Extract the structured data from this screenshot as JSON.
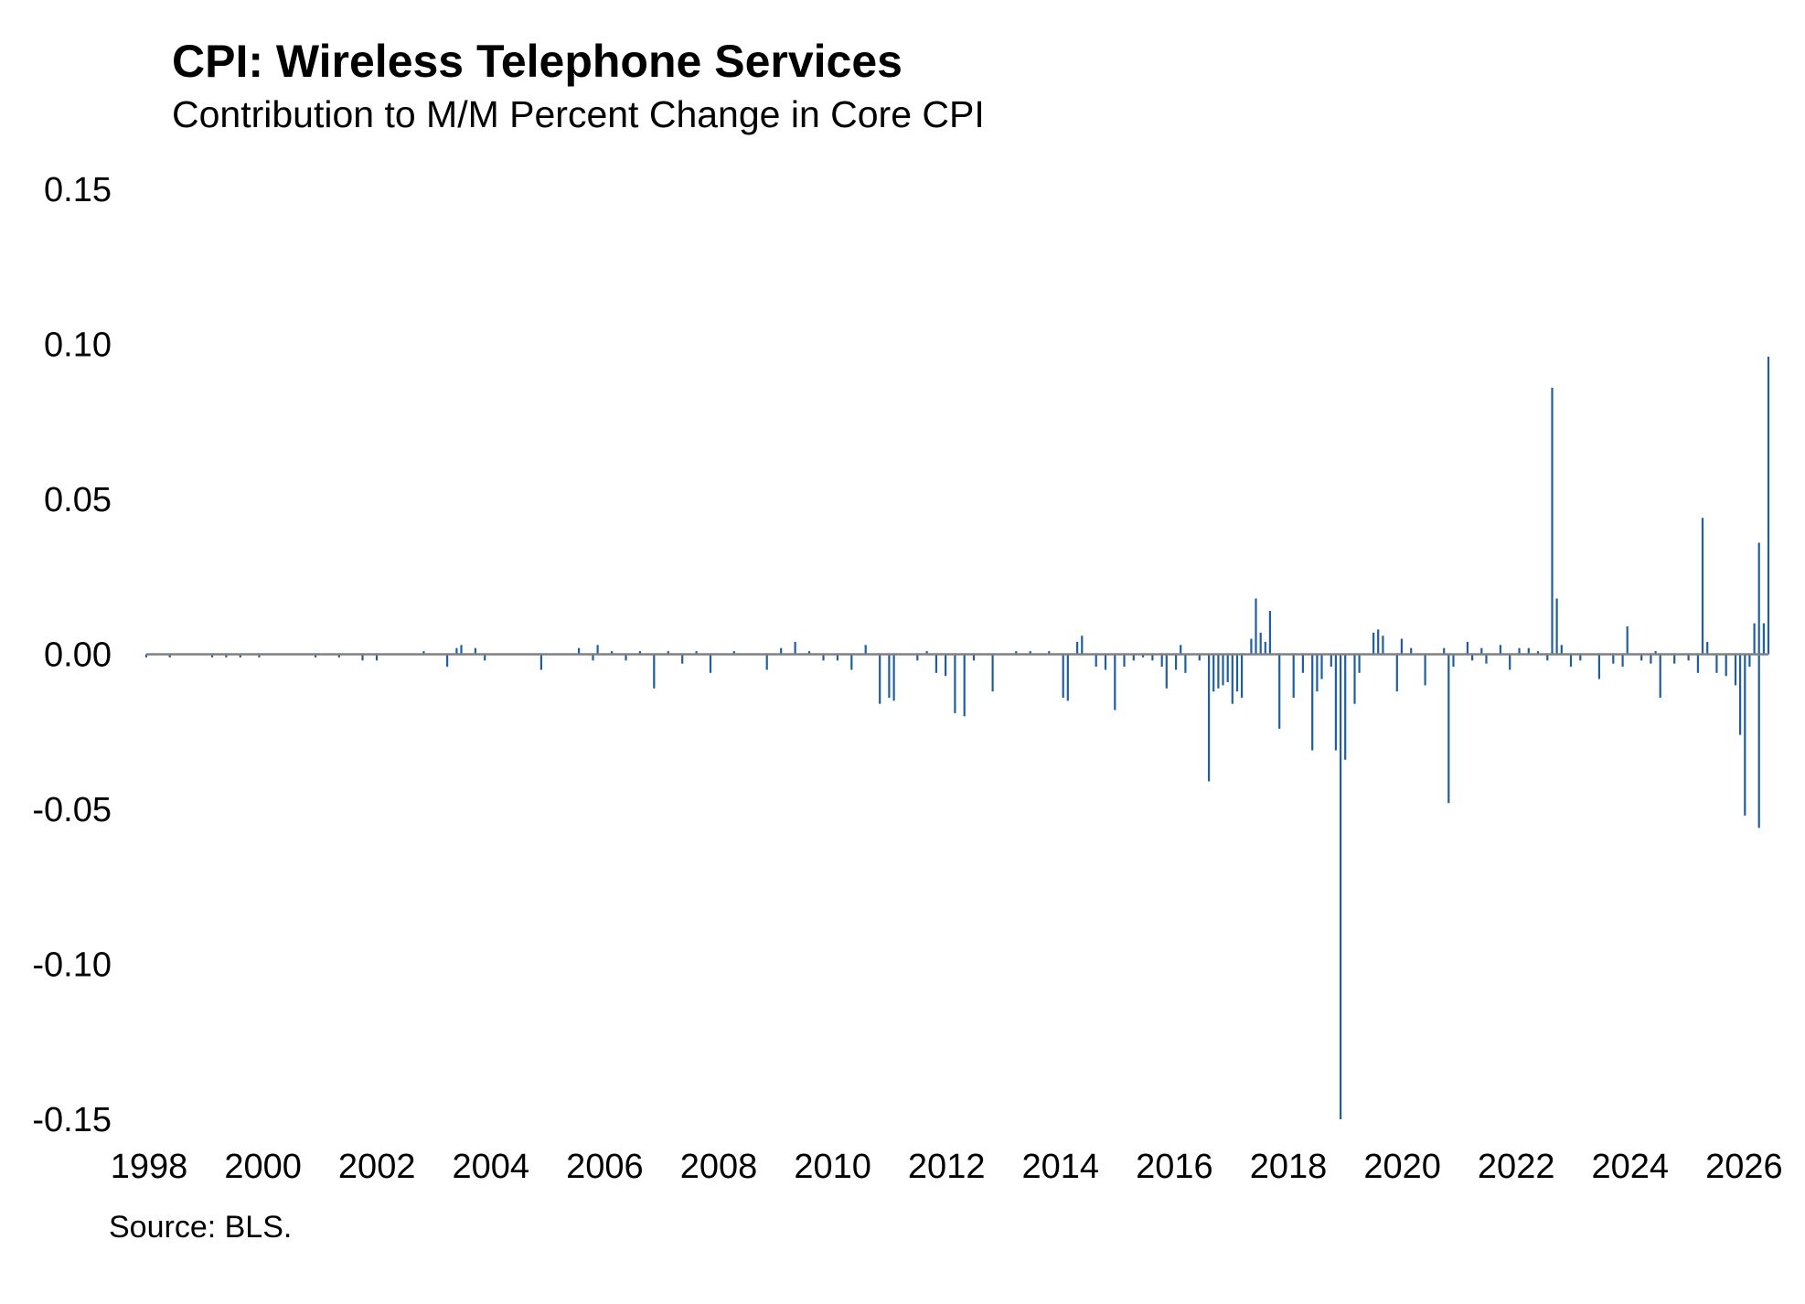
{
  "header": {
    "title": "CPI: Wireless Telephone Services",
    "subtitle": "Contribution to M/M Percent Change in Core CPI"
  },
  "footer": {
    "source": "Source: BLS."
  },
  "chart_data": {
    "type": "bar",
    "title": "CPI: Wireless Telephone Services",
    "subtitle": "Contribution to M/M Percent Change in Core CPI",
    "xlabel": "",
    "ylabel": "",
    "ylim": [
      -0.15,
      0.15
    ],
    "yticks": [
      "0.15",
      "0.10",
      "0.05",
      "0.00",
      "-0.05",
      "-0.10",
      "-0.15"
    ],
    "xticks": [
      "1998",
      "2000",
      "2002",
      "2004",
      "2006",
      "2008",
      "2010",
      "2012",
      "2014",
      "2016",
      "2018",
      "2020",
      "2022",
      "2024",
      "2026"
    ],
    "x_range": [
      "1998-01",
      "2026-10"
    ],
    "grid": false,
    "legend": "none",
    "bar_color": "#1f5f9e",
    "zero_line_color": "#808080",
    "series": [
      {
        "values": [
          {
            "date": "1998-01",
            "value": -0.001
          },
          {
            "date": "1998-06",
            "value": -0.001
          },
          {
            "date": "1999-03",
            "value": -0.001
          },
          {
            "date": "1999-06",
            "value": -0.001
          },
          {
            "date": "1999-09",
            "value": -0.001
          },
          {
            "date": "2000-01",
            "value": -0.001
          },
          {
            "date": "2001-01",
            "value": -0.001
          },
          {
            "date": "2001-06",
            "value": -0.001
          },
          {
            "date": "2001-11",
            "value": -0.002
          },
          {
            "date": "2002-02",
            "value": -0.002
          },
          {
            "date": "2002-12",
            "value": 0.001
          },
          {
            "date": "2003-05",
            "value": -0.004
          },
          {
            "date": "2003-07",
            "value": 0.002
          },
          {
            "date": "2003-08",
            "value": 0.003
          },
          {
            "date": "2003-11",
            "value": 0.002
          },
          {
            "date": "2004-01",
            "value": -0.002
          },
          {
            "date": "2005-01",
            "value": -0.005
          },
          {
            "date": "2005-09",
            "value": 0.002
          },
          {
            "date": "2005-12",
            "value": -0.002
          },
          {
            "date": "2006-01",
            "value": 0.003
          },
          {
            "date": "2006-04",
            "value": 0.001
          },
          {
            "date": "2006-07",
            "value": -0.002
          },
          {
            "date": "2006-10",
            "value": 0.001
          },
          {
            "date": "2007-01",
            "value": -0.011
          },
          {
            "date": "2007-04",
            "value": 0.001
          },
          {
            "date": "2007-07",
            "value": -0.003
          },
          {
            "date": "2007-10",
            "value": 0.001
          },
          {
            "date": "2008-01",
            "value": -0.006
          },
          {
            "date": "2008-06",
            "value": 0.001
          },
          {
            "date": "2009-01",
            "value": -0.005
          },
          {
            "date": "2009-04",
            "value": 0.002
          },
          {
            "date": "2009-07",
            "value": 0.004
          },
          {
            "date": "2009-10",
            "value": 0.001
          },
          {
            "date": "2010-01",
            "value": -0.002
          },
          {
            "date": "2010-04",
            "value": -0.002
          },
          {
            "date": "2010-07",
            "value": -0.005
          },
          {
            "date": "2010-10",
            "value": 0.003
          },
          {
            "date": "2011-01",
            "value": -0.016
          },
          {
            "date": "2011-03",
            "value": -0.014
          },
          {
            "date": "2011-04",
            "value": -0.015
          },
          {
            "date": "2011-09",
            "value": -0.002
          },
          {
            "date": "2011-11",
            "value": 0.001
          },
          {
            "date": "2012-01",
            "value": -0.006
          },
          {
            "date": "2012-03",
            "value": -0.007
          },
          {
            "date": "2012-05",
            "value": -0.019
          },
          {
            "date": "2012-07",
            "value": -0.02
          },
          {
            "date": "2012-09",
            "value": -0.002
          },
          {
            "date": "2013-01",
            "value": -0.012
          },
          {
            "date": "2013-06",
            "value": 0.001
          },
          {
            "date": "2013-09",
            "value": 0.001
          },
          {
            "date": "2014-01",
            "value": 0.001
          },
          {
            "date": "2014-04",
            "value": -0.014
          },
          {
            "date": "2014-05",
            "value": -0.015
          },
          {
            "date": "2014-07",
            "value": 0.004
          },
          {
            "date": "2014-08",
            "value": 0.006
          },
          {
            "date": "2014-11",
            "value": -0.004
          },
          {
            "date": "2015-01",
            "value": -0.005
          },
          {
            "date": "2015-03",
            "value": -0.018
          },
          {
            "date": "2015-05",
            "value": -0.004
          },
          {
            "date": "2015-07",
            "value": -0.002
          },
          {
            "date": "2015-09",
            "value": -0.001
          },
          {
            "date": "2015-11",
            "value": -0.002
          },
          {
            "date": "2016-01",
            "value": -0.004
          },
          {
            "date": "2016-02",
            "value": -0.011
          },
          {
            "date": "2016-04",
            "value": -0.005
          },
          {
            "date": "2016-05",
            "value": 0.003
          },
          {
            "date": "2016-06",
            "value": -0.006
          },
          {
            "date": "2016-09",
            "value": -0.002
          },
          {
            "date": "2016-11",
            "value": -0.041
          },
          {
            "date": "2016-12",
            "value": -0.012
          },
          {
            "date": "2017-01",
            "value": -0.011
          },
          {
            "date": "2017-02",
            "value": -0.01
          },
          {
            "date": "2017-03",
            "value": -0.009
          },
          {
            "date": "2017-04",
            "value": -0.016
          },
          {
            "date": "2017-05",
            "value": -0.012
          },
          {
            "date": "2017-06",
            "value": -0.014
          },
          {
            "date": "2017-08",
            "value": 0.005
          },
          {
            "date": "2017-09",
            "value": 0.018
          },
          {
            "date": "2017-10",
            "value": 0.007
          },
          {
            "date": "2017-11",
            "value": 0.004
          },
          {
            "date": "2017-12",
            "value": 0.014
          },
          {
            "date": "2018-02",
            "value": -0.024
          },
          {
            "date": "2018-05",
            "value": -0.014
          },
          {
            "date": "2018-07",
            "value": -0.006
          },
          {
            "date": "2018-09",
            "value": -0.031
          },
          {
            "date": "2018-10",
            "value": -0.012
          },
          {
            "date": "2018-11",
            "value": -0.008
          },
          {
            "date": "2019-01",
            "value": -0.004
          },
          {
            "date": "2019-02",
            "value": -0.031
          },
          {
            "date": "2019-03",
            "value": -0.15
          },
          {
            "date": "2019-04",
            "value": -0.034
          },
          {
            "date": "2019-06",
            "value": -0.016
          },
          {
            "date": "2019-07",
            "value": -0.006
          },
          {
            "date": "2019-10",
            "value": 0.007
          },
          {
            "date": "2019-11",
            "value": 0.008
          },
          {
            "date": "2019-12",
            "value": 0.006
          },
          {
            "date": "2020-03",
            "value": -0.012
          },
          {
            "date": "2020-04",
            "value": 0.005
          },
          {
            "date": "2020-06",
            "value": 0.002
          },
          {
            "date": "2020-09",
            "value": -0.01
          },
          {
            "date": "2021-01",
            "value": 0.002
          },
          {
            "date": "2021-02",
            "value": -0.048
          },
          {
            "date": "2021-03",
            "value": -0.004
          },
          {
            "date": "2021-06",
            "value": 0.004
          },
          {
            "date": "2021-07",
            "value": -0.002
          },
          {
            "date": "2021-09",
            "value": 0.002
          },
          {
            "date": "2021-10",
            "value": -0.003
          },
          {
            "date": "2022-01",
            "value": 0.003
          },
          {
            "date": "2022-03",
            "value": -0.005
          },
          {
            "date": "2022-05",
            "value": 0.002
          },
          {
            "date": "2022-07",
            "value": 0.002
          },
          {
            "date": "2022-09",
            "value": 0.001
          },
          {
            "date": "2022-11",
            "value": -0.002
          },
          {
            "date": "2022-12",
            "value": 0.086
          },
          {
            "date": "2023-01",
            "value": 0.018
          },
          {
            "date": "2023-02",
            "value": 0.003
          },
          {
            "date": "2023-04",
            "value": -0.004
          },
          {
            "date": "2023-06",
            "value": -0.002
          },
          {
            "date": "2023-10",
            "value": -0.008
          },
          {
            "date": "2024-01",
            "value": -0.003
          },
          {
            "date": "2024-03",
            "value": -0.004
          },
          {
            "date": "2024-04",
            "value": 0.009
          },
          {
            "date": "2024-07",
            "value": -0.002
          },
          {
            "date": "2024-09",
            "value": -0.003
          },
          {
            "date": "2024-10",
            "value": 0.001
          },
          {
            "date": "2024-11",
            "value": -0.014
          },
          {
            "date": "2025-02",
            "value": -0.003
          },
          {
            "date": "2025-05",
            "value": -0.002
          },
          {
            "date": "2025-07",
            "value": -0.006
          },
          {
            "date": "2025-08",
            "value": 0.044
          },
          {
            "date": "2025-09",
            "value": 0.004
          },
          {
            "date": "2025-11",
            "value": -0.006
          },
          {
            "date": "2026-01",
            "value": -0.007
          },
          {
            "date": "2026-03",
            "value": -0.01
          },
          {
            "date": "2026-04",
            "value": -0.026
          },
          {
            "date": "2026-05",
            "value": -0.052
          },
          {
            "date": "2026-06",
            "value": -0.004
          },
          {
            "date": "2026-07",
            "value": 0.01
          },
          {
            "date": "2026-08",
            "value": 0.036
          },
          {
            "date": "2026-08",
            "value": -0.056
          },
          {
            "date": "2026-09",
            "value": 0.01
          },
          {
            "date": "2026-10",
            "value": 0.096
          }
        ]
      }
    ]
  }
}
